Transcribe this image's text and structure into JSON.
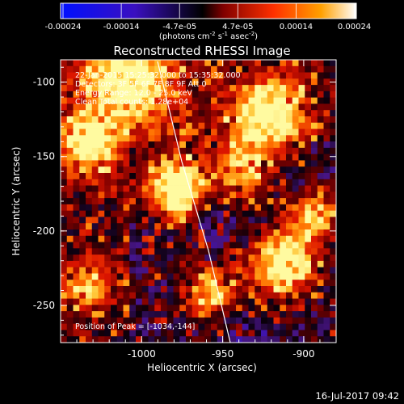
{
  "colorbar": {
    "ticks": [
      "-0.00024",
      "-0.00014",
      "-4.7e-05",
      "4.7e-05",
      "0.00014",
      "0.00024"
    ],
    "units_prefix": "(photons cm",
    "units_exp1": "-2",
    "units_mid": " s",
    "units_exp2": "-1",
    "units_mid2": " asec",
    "units_exp3": "-2",
    "units_suffix": ")"
  },
  "plot": {
    "title": "Reconstructed RHESSI Image",
    "xlabel": "Heliocentric X (arcsec)",
    "ylabel": "Heliocentric Y (arcsec)",
    "x_ticks": [
      "-1000",
      "-950",
      "-900"
    ],
    "y_ticks": [
      "-100",
      "-150",
      "-200",
      "-250"
    ],
    "annotations": [
      "22-Jan-2015 15:25:32.000 to 15:35:32.000",
      "Detectors: 3F 5F 6F 7F 8F 9F Att 0",
      "Energy Range: 12.0 - 25.0 keV",
      "Clean     Total counts: 1.28e+04"
    ],
    "peak_label": "Position of Peak = [-1034,-144]"
  },
  "footer": {
    "date": "16-Jul-2017 09:42"
  },
  "chart_data": {
    "type": "heatmap",
    "title": "Reconstructed RHESSI Image",
    "xlabel": "Heliocentric X (arcsec)",
    "ylabel": "Heliocentric Y (arcsec)",
    "xlim": [
      -1050,
      -880
    ],
    "ylim": [
      -275,
      -85
    ],
    "color_range": [
      -0.00024,
      0.00024
    ],
    "colormap": [
      "#0000ff",
      "#300080",
      "#000000",
      "#800000",
      "#ff2000",
      "#ff9000",
      "#ffff80",
      "#ffffff"
    ]
  }
}
